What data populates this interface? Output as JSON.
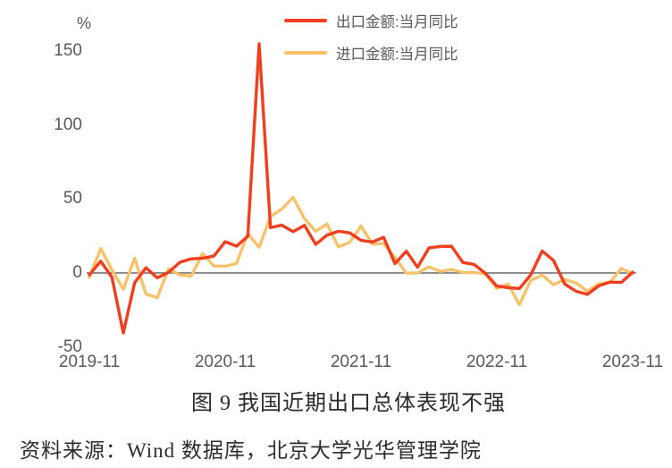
{
  "figure": {
    "unit_label": "%",
    "caption": "图 9 我国近期出口总体表现不强",
    "source": "资料来源：Wind 数据库，北京大学光华管理学院"
  },
  "legend": [
    {
      "id": "export",
      "label": "出口金额:当月同比",
      "color": "#f03e1e"
    },
    {
      "id": "import",
      "label": "进口金额:当月同比",
      "color": "#f8c26b"
    }
  ],
  "colors": {
    "export_line": "#f03e1e",
    "import_line": "#f8c26b",
    "zero_baseline": "#7f7f7f",
    "tick_text": "#595959"
  },
  "chart_data": {
    "type": "line",
    "title": "图 9 我国近期出口总体表现不强",
    "xlabel": "",
    "ylabel": "%",
    "ylim": [
      -50,
      160
    ],
    "y_ticks": [
      150,
      100,
      50,
      0,
      -50
    ],
    "x_tick_labels": [
      "2019-11",
      "2020-11",
      "2021-11",
      "2022-11",
      "2023-11"
    ],
    "x_tick_indices": [
      0,
      12,
      24,
      36,
      48
    ],
    "grid": false,
    "legend_position": "top-center",
    "baseline": 0,
    "x": [
      "2019-11",
      "2019-12",
      "2020-01",
      "2020-02",
      "2020-03",
      "2020-04",
      "2020-05",
      "2020-06",
      "2020-07",
      "2020-08",
      "2020-09",
      "2020-10",
      "2020-11",
      "2020-12",
      "2021-01",
      "2021-02",
      "2021-03",
      "2021-04",
      "2021-05",
      "2021-06",
      "2021-07",
      "2021-08",
      "2021-09",
      "2021-10",
      "2021-11",
      "2021-12",
      "2022-01",
      "2022-02",
      "2022-03",
      "2022-04",
      "2022-05",
      "2022-06",
      "2022-07",
      "2022-08",
      "2022-09",
      "2022-10",
      "2022-11",
      "2022-12",
      "2023-01",
      "2023-02",
      "2023-03",
      "2023-04",
      "2023-05",
      "2023-06",
      "2023-07",
      "2023-08",
      "2023-09",
      "2023-10",
      "2023-11"
    ],
    "series": [
      {
        "id": "export",
        "name": "出口金额:当月同比",
        "color": "#f03e1e",
        "values": [
          -1.3,
          7.9,
          -3.0,
          -40.6,
          -6.6,
          3.5,
          -3.3,
          0.5,
          7.2,
          9.5,
          9.9,
          11.4,
          21.1,
          18.1,
          24.8,
          154.9,
          30.6,
          32.3,
          27.9,
          32.2,
          19.3,
          25.6,
          28.1,
          27.1,
          22.0,
          20.9,
          24.1,
          6.3,
          14.7,
          3.9,
          16.9,
          17.9,
          18.0,
          7.1,
          5.7,
          -0.3,
          -8.9,
          -9.9,
          -10.5,
          -1.3,
          14.8,
          8.5,
          -7.5,
          -12.4,
          -14.5,
          -8.8,
          -6.2,
          -6.4,
          0.5
        ]
      },
      {
        "id": "import",
        "name": "进口金额:当月同比",
        "color": "#f8c26b",
        "values": [
          -3.0,
          16.5,
          2.0,
          -11.0,
          10.0,
          -14.2,
          -16.7,
          2.7,
          -1.4,
          -2.1,
          13.2,
          4.7,
          4.5,
          6.5,
          26.6,
          17.3,
          38.1,
          43.1,
          51.1,
          36.7,
          28.1,
          33.1,
          17.6,
          20.6,
          31.7,
          19.5,
          19.9,
          10.4,
          -0.1,
          0.0,
          4.1,
          1.0,
          2.3,
          0.3,
          0.3,
          -0.7,
          -10.6,
          -7.5,
          -21.4,
          -5.0,
          -1.4,
          -7.9,
          -4.5,
          -6.8,
          -12.4,
          -7.3,
          -6.2,
          3.0,
          -0.6
        ]
      }
    ]
  }
}
